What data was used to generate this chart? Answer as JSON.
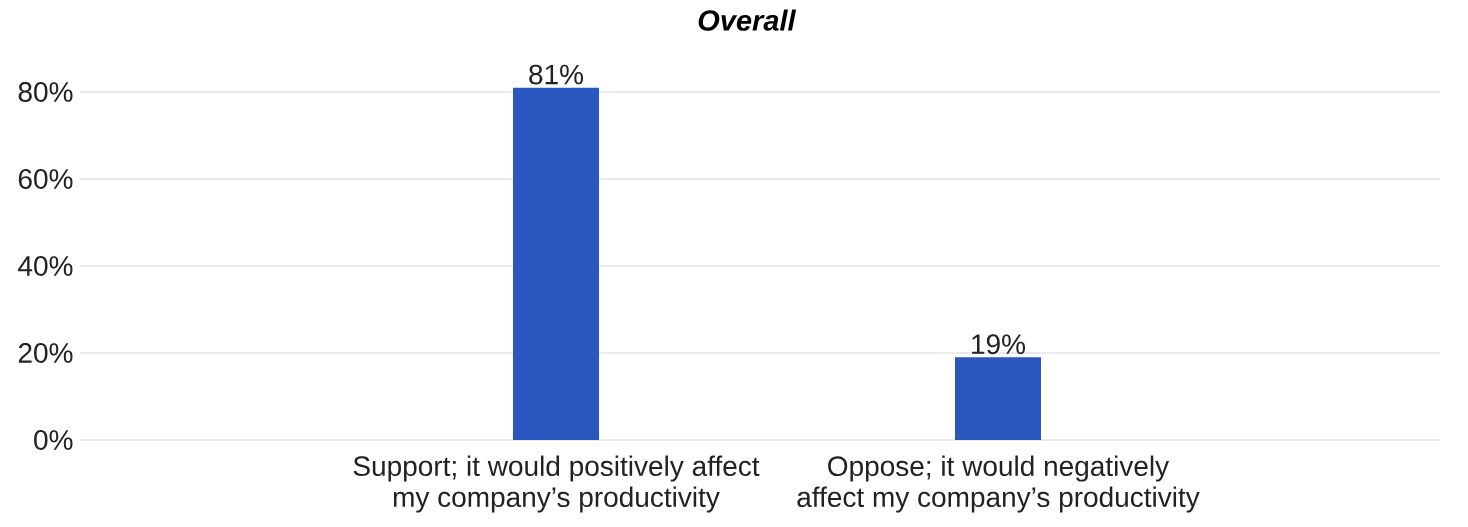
{
  "chart_data": {
    "type": "bar",
    "title": "Overall",
    "categories": [
      "Support; it would positively affect my company’s productivity",
      "Oppose; it would negatively affect my company’s productivity"
    ],
    "values": [
      81,
      19
    ],
    "color": "#2a56c0",
    "value_labels": [
      "81%",
      "19%"
    ],
    "ylim": [
      0,
      81
    ],
    "yticks": [
      {
        "value": 0,
        "label": "0%"
      },
      {
        "value": 20,
        "label": "20%"
      },
      {
        "value": 40,
        "label": "40%"
      },
      {
        "value": 60,
        "label": "60%"
      },
      {
        "value": 80,
        "label": "80%"
      }
    ],
    "grid": "y"
  }
}
